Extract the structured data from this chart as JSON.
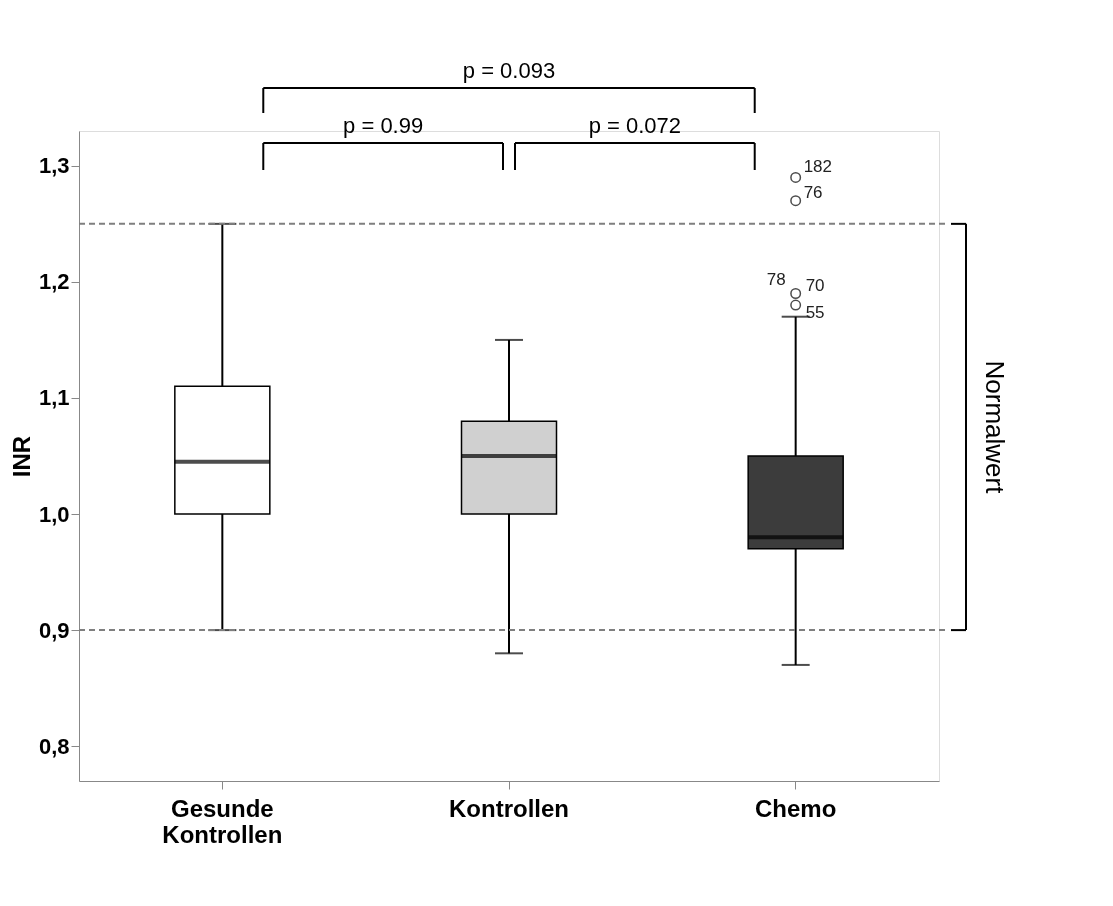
{
  "chart_data": {
    "type": "box",
    "ylabel": "INR",
    "categories": [
      "Gesunde Kontrollen",
      "Kontrollen",
      "Chemo"
    ],
    "boxes": [
      {
        "low": 0.9,
        "q1": 1.0,
        "median": 1.045,
        "q3": 1.11,
        "high": 1.25
      },
      {
        "low": 0.88,
        "q1": 1.0,
        "median": 1.05,
        "q3": 1.08,
        "high": 1.15
      },
      {
        "low": 0.87,
        "q1": 0.97,
        "median": 0.98,
        "q3": 1.05,
        "high": 1.17,
        "outliers": [
          1.18,
          1.19,
          1.27,
          1.29
        ]
      }
    ],
    "colors": [
      "#ffffff",
      "#d0d0d0",
      "#3c3c3c"
    ],
    "ylim": [
      0.77,
      1.33
    ],
    "yticks": [
      {
        "value": 0.8,
        "label": "0,8"
      },
      {
        "value": 0.9,
        "label": "0,9"
      },
      {
        "value": 1.0,
        "label": "1,0"
      },
      {
        "value": 1.1,
        "label": "1,1"
      },
      {
        "value": 1.2,
        "label": "1,2"
      },
      {
        "value": 1.3,
        "label": "1,3"
      }
    ],
    "grid": false,
    "ref_lines": [
      {
        "axis": "y",
        "value": 0.9,
        "color": "#7f7f7f",
        "line_style": "dashed"
      },
      {
        "axis": "y",
        "value": 1.25,
        "color": "#7f7f7f",
        "line_style": "dashed"
      }
    ],
    "annotations": [
      "p = 0.093",
      "p = 0.99",
      "p = 0.072",
      "Normalwert",
      "182",
      "76",
      "78",
      "70",
      "55"
    ]
  }
}
